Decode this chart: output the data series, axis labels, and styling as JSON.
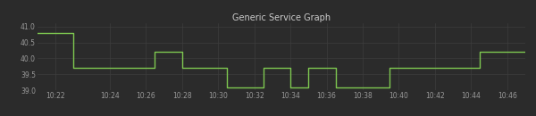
{
  "title": "Generic Service Graph",
  "title_color": "#cccccc",
  "title_fontsize": 7,
  "background_color": "#2b2b2b",
  "plot_bg_color": "#2b2b2b",
  "grid_color": "#3d3d3d",
  "line_color": "#7ec850",
  "line_width": 1.0,
  "legend_color": "#7ec850",
  "ylim": [
    39.0,
    41.1
  ],
  "yticks": [
    39.0,
    39.5,
    40.0,
    40.5,
    41.0
  ],
  "xlabel_color": "#999999",
  "ylabel_color": "#999999",
  "tick_fontsize": 5.5,
  "x_numeric": [
    0,
    1,
    1.5,
    2,
    4,
    5,
    6,
    6.5,
    7,
    8,
    9,
    10,
    10.5,
    11,
    12,
    12.5,
    13,
    13.5,
    14,
    14.5,
    15,
    16,
    16.5,
    17,
    18,
    18.5,
    19,
    19.5,
    20,
    21,
    22,
    23,
    24,
    24.5,
    25,
    26,
    27
  ],
  "y_values": [
    40.8,
    40.8,
    40.8,
    39.7,
    39.7,
    39.7,
    39.7,
    40.2,
    40.2,
    39.7,
    39.7,
    39.7,
    39.1,
    39.1,
    39.1,
    39.7,
    39.7,
    39.7,
    39.1,
    39.1,
    39.7,
    39.7,
    39.1,
    39.1,
    39.1,
    39.1,
    39.1,
    39.7,
    39.7,
    39.7,
    39.7,
    39.7,
    39.7,
    40.2,
    40.2,
    40.2,
    40.2
  ],
  "xtick_positions": [
    1,
    4,
    6,
    8,
    10,
    12,
    14,
    16,
    18,
    20,
    22,
    24,
    26
  ],
  "xtick_labels": [
    "10:22",
    "10:24",
    "10:26",
    "10:28",
    "10:30",
    "10:32",
    "10:34",
    "10:36",
    "10:38",
    "10:40",
    "10:42",
    "10:44",
    "10:46"
  ]
}
